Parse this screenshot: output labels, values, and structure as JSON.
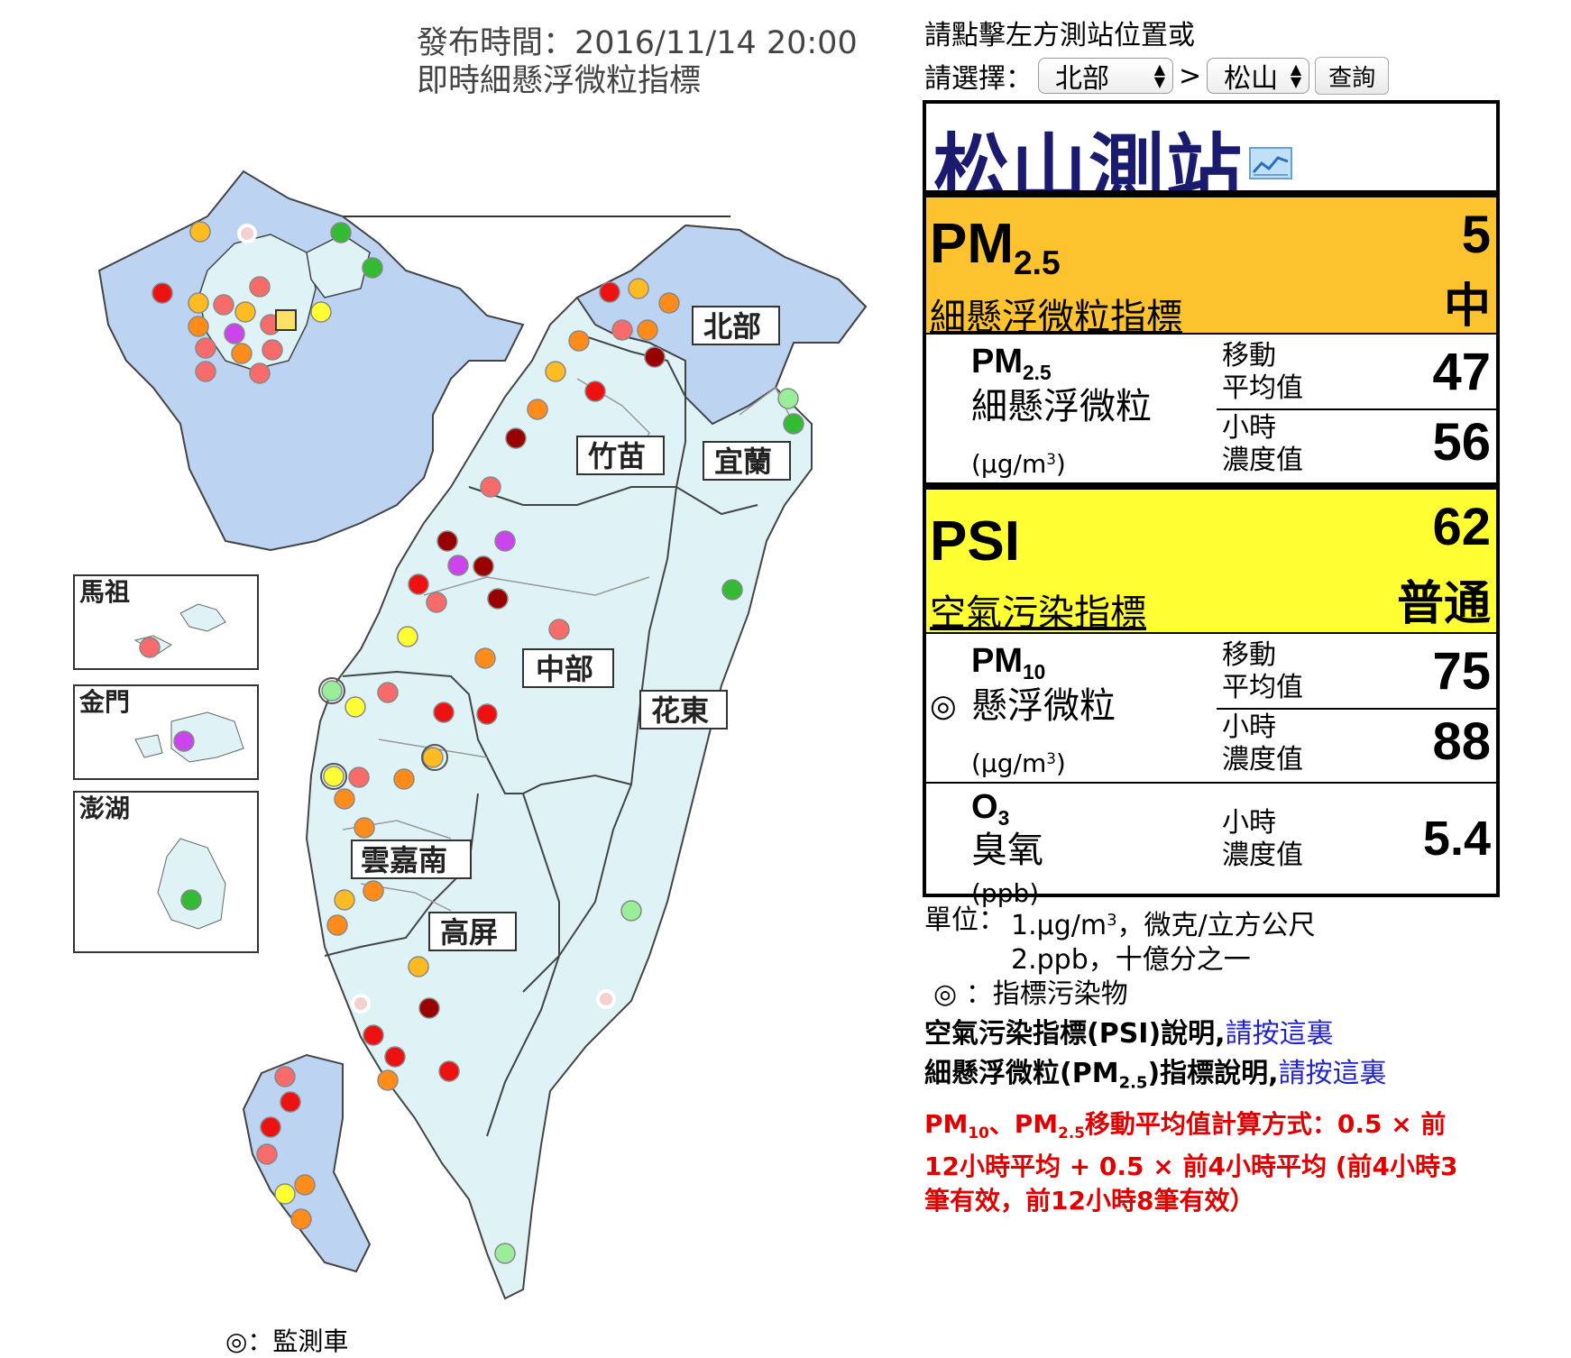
{
  "header": {
    "publish_time": "發布時間：2016/11/14 20:00",
    "subtitle": "即時細懸浮微粒指標"
  },
  "map": {
    "regions": [
      "北部",
      "竹苗",
      "宜蘭",
      "中部",
      "花東",
      "雲嘉南",
      "高屏"
    ],
    "insets": [
      "馬祖",
      "金門",
      "澎湖"
    ],
    "colors": {
      "land": "#dff3f7",
      "north_land": "#bcd3f2",
      "green": "#33bb33",
      "light_green": "#99ee99",
      "yellow": "#ffff33",
      "gold": "#ffbb22",
      "orange": "#ff8c1a",
      "salmon": "#f76b6b",
      "red": "#ee1111",
      "darkred": "#990000",
      "purple": "#cc44ee"
    },
    "legend": "◎：監測車"
  },
  "selector": {
    "prompt": "請點擊左方測站位置或",
    "label": "請選擇：",
    "region_value": "北部",
    "separator": ">",
    "station_value": "松山",
    "query_button": "查詢"
  },
  "station": {
    "name": "松山測站",
    "icon": "chart-icon",
    "pm25_index": {
      "label": "PM",
      "sub": "2.5",
      "link": "細懸浮微粒指標",
      "value": "5",
      "level": "中",
      "color": "#fcc32e"
    },
    "pm25": {
      "label": "PM",
      "sub": "2.5",
      "name": "細懸浮微粒",
      "unit_pre": "(μg/m",
      "unit_sup": "3",
      "unit_post": ")",
      "moving_label_1": "移動",
      "moving_label_2": "平均值",
      "moving_value": "47",
      "hourly_label_1": "小時",
      "hourly_label_2": "濃度值",
      "hourly_value": "56"
    },
    "psi": {
      "label": "PSI",
      "link": "空氣污染指標",
      "value": "62",
      "level": "普通",
      "color": "#ffff33"
    },
    "pm10": {
      "label": "PM",
      "sub": "10",
      "mark": "◎",
      "name": "懸浮微粒",
      "unit_pre": "(μg/m",
      "unit_sup": "3",
      "unit_post": ")",
      "moving_label_1": "移動",
      "moving_label_2": "平均值",
      "moving_value": "75",
      "hourly_label_1": "小時",
      "hourly_label_2": "濃度值",
      "hourly_value": "88"
    },
    "o3": {
      "label": "O",
      "sub": "3",
      "name": "臭氧",
      "unit": "(ppb)",
      "hourly_label_1": "小時",
      "hourly_label_2": "濃度值",
      "hourly_value": "5.4"
    }
  },
  "notes": {
    "unit_label": "單位：",
    "unit_1_pre": "1.μg/m",
    "unit_1_sup": "3",
    "unit_1_post": "，微克/立方公尺",
    "unit_2": "2.ppb，十億分之一",
    "indicator_mark": "◎",
    "indicator_text": "：指標污染物",
    "psi_note": "空氣污染指標(PSI)說明,",
    "pm25_note_pre": "細懸浮微粒(PM",
    "pm25_note_sub": "2.5",
    "pm25_note_post": ")指標說明,",
    "click_here": "請按這裏",
    "formula_1_a": "PM",
    "formula_1_sub1": "10",
    "formula_1_b": "、PM",
    "formula_1_sub2": "2.5",
    "formula_1_c": "移動平均值計算方式：0.5 × 前",
    "formula_2": "12小時平均 + 0.5 × 前4小時平均 (前4小時3",
    "formula_3": "筆有效，前12小時8筆有效）"
  }
}
